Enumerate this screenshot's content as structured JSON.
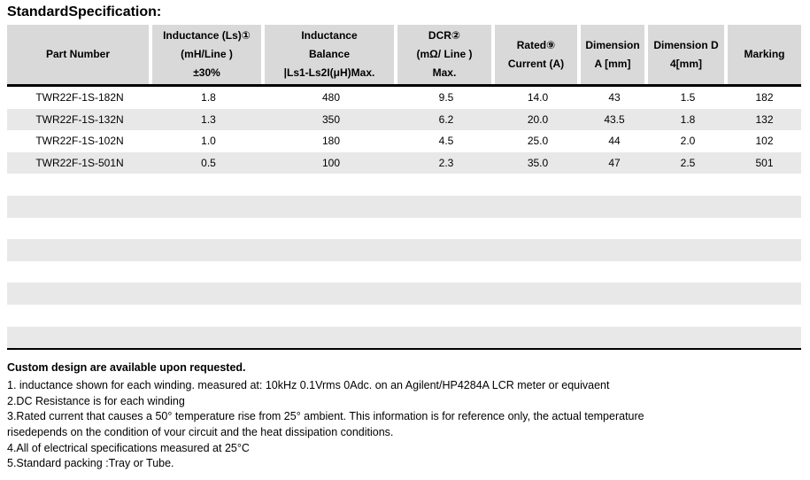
{
  "page": {
    "title": "StandardSpecification:"
  },
  "table": {
    "headers": [
      {
        "id": "part-number",
        "label": "Part Number"
      },
      {
        "id": "inductance",
        "label": "Inductance (Ls)①\n(mH/Line )\n±30%"
      },
      {
        "id": "inductance-balance",
        "label": "Inductance\nBalance\n|Ls1-Ls2I(μH)Max."
      },
      {
        "id": "dcr",
        "label": "DCR②\n(mΩ/ Line )\nMax."
      },
      {
        "id": "rated-current",
        "label": "Rated⑨\nCurrent (A)"
      },
      {
        "id": "dimension-a",
        "label": "Dimension\nA [mm]"
      },
      {
        "id": "dimension-d4",
        "label": "Dimension D\n4[mm]"
      },
      {
        "id": "marking",
        "label": "Marking"
      }
    ],
    "rows": [
      [
        "TWR22F-1S-182N",
        "1.8",
        "480",
        "9.5",
        "14.0",
        "43",
        "1.5",
        "182"
      ],
      [
        "TWR22F-1S-132N",
        "1.3",
        "350",
        "6.2",
        "20.0",
        "43.5",
        "1.8",
        "132"
      ],
      [
        "TWR22F-1S-102N",
        "1.0",
        "180",
        "4.5",
        "25.0",
        "44",
        "2.0",
        "102"
      ],
      [
        "TWR22F-1S-501N",
        "0.5",
        "100",
        "2.3",
        "35.0",
        "47",
        "2.5",
        "501"
      ]
    ],
    "empty_row_count": 8
  },
  "notes": {
    "heading": "Custom design are available upon requested.",
    "lines": [
      "1. inductance shown for each winding. measured at: 10kHz 0.1Vrms 0Adc. on an Agilent/HP4284A LCR meter or equivaent",
      "2.DC Resistance is for each winding",
      "3.Rated current that causes a 50° temperature rise from 25° ambient. This information is for reference only, the actual temperature",
      "risedepends on the condition of vour circuit and the heat dissipation conditions.",
      "4.All of electrical specifications measured at 25°C",
      "5.Standard packing :Tray or Tube."
    ]
  },
  "colors": {
    "header_bg": "#d9d9d9",
    "row_alt_bg": "#e8e8e8",
    "border": "#000000"
  }
}
